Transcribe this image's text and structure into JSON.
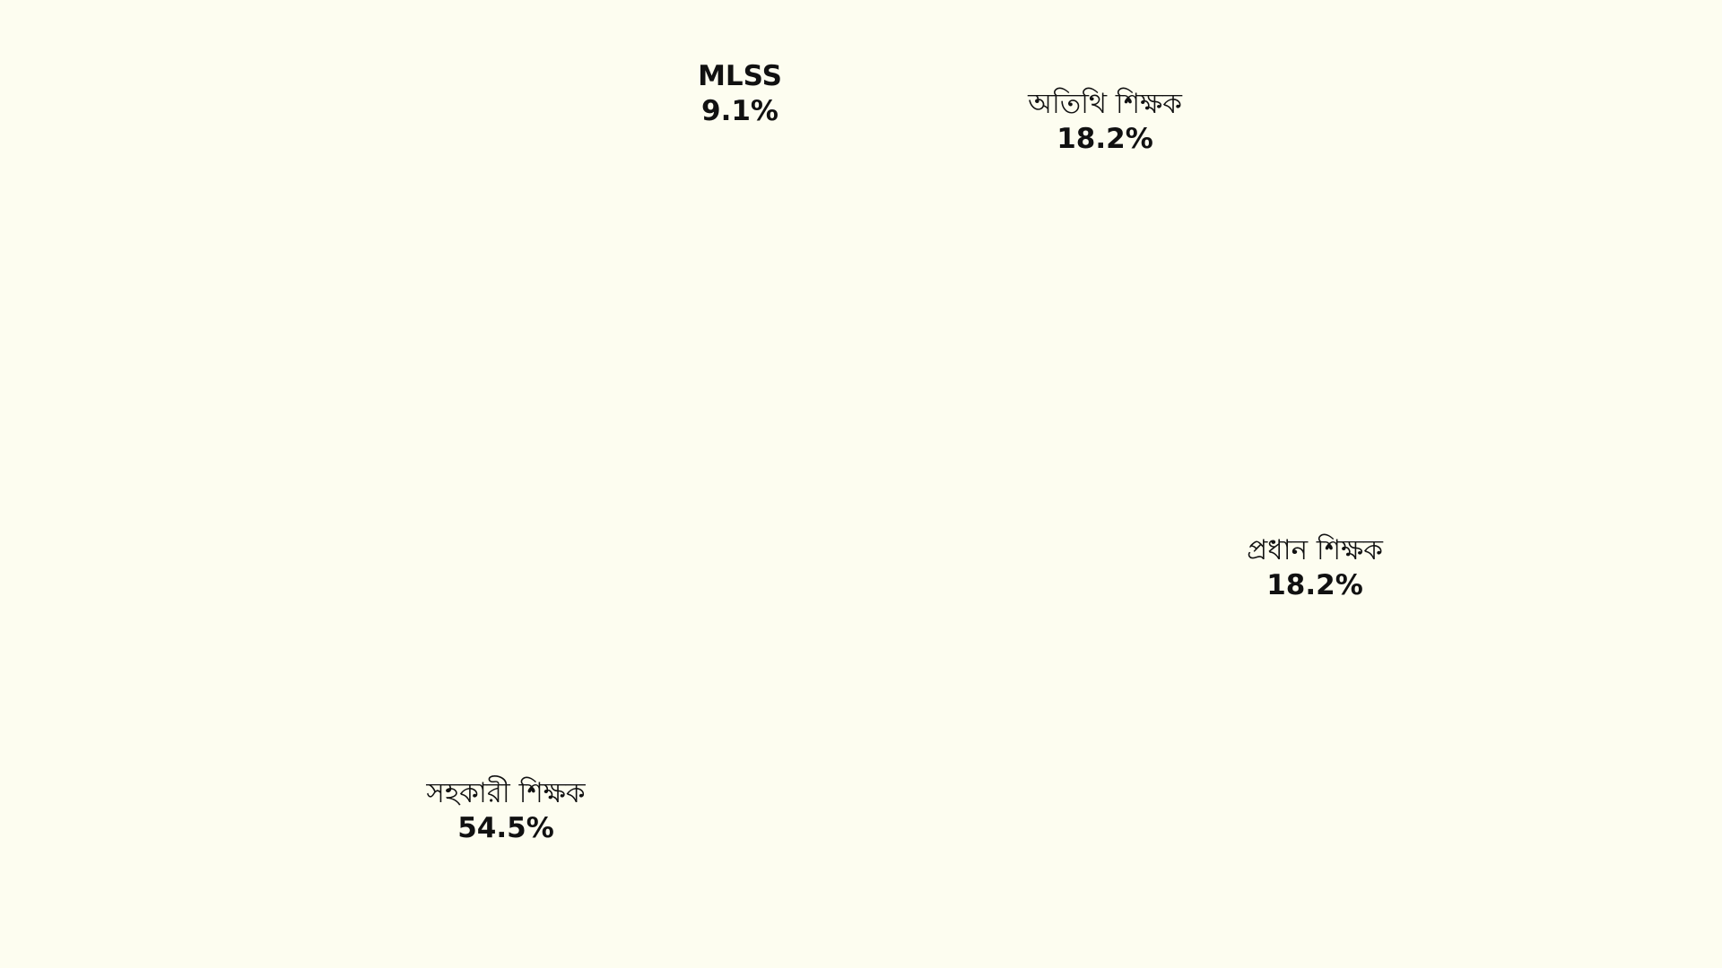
{
  "chart_data": {
    "type": "pie",
    "title": "",
    "slices": [
      {
        "label": "MLSS",
        "value": 9.1,
        "value_label": "9.1%"
      },
      {
        "label": "অতিথি শিক্ষক",
        "value": 18.2,
        "value_label": "18.2%"
      },
      {
        "label": "প্রধান শিক্ষক",
        "value": 18.2,
        "value_label": "18.2%"
      },
      {
        "label": "সহকারী শিক্ষক",
        "value": 54.5,
        "value_label": "54.5%"
      }
    ],
    "legend": "none",
    "background_color": "#fdfdf0",
    "text_color": "#111111"
  }
}
